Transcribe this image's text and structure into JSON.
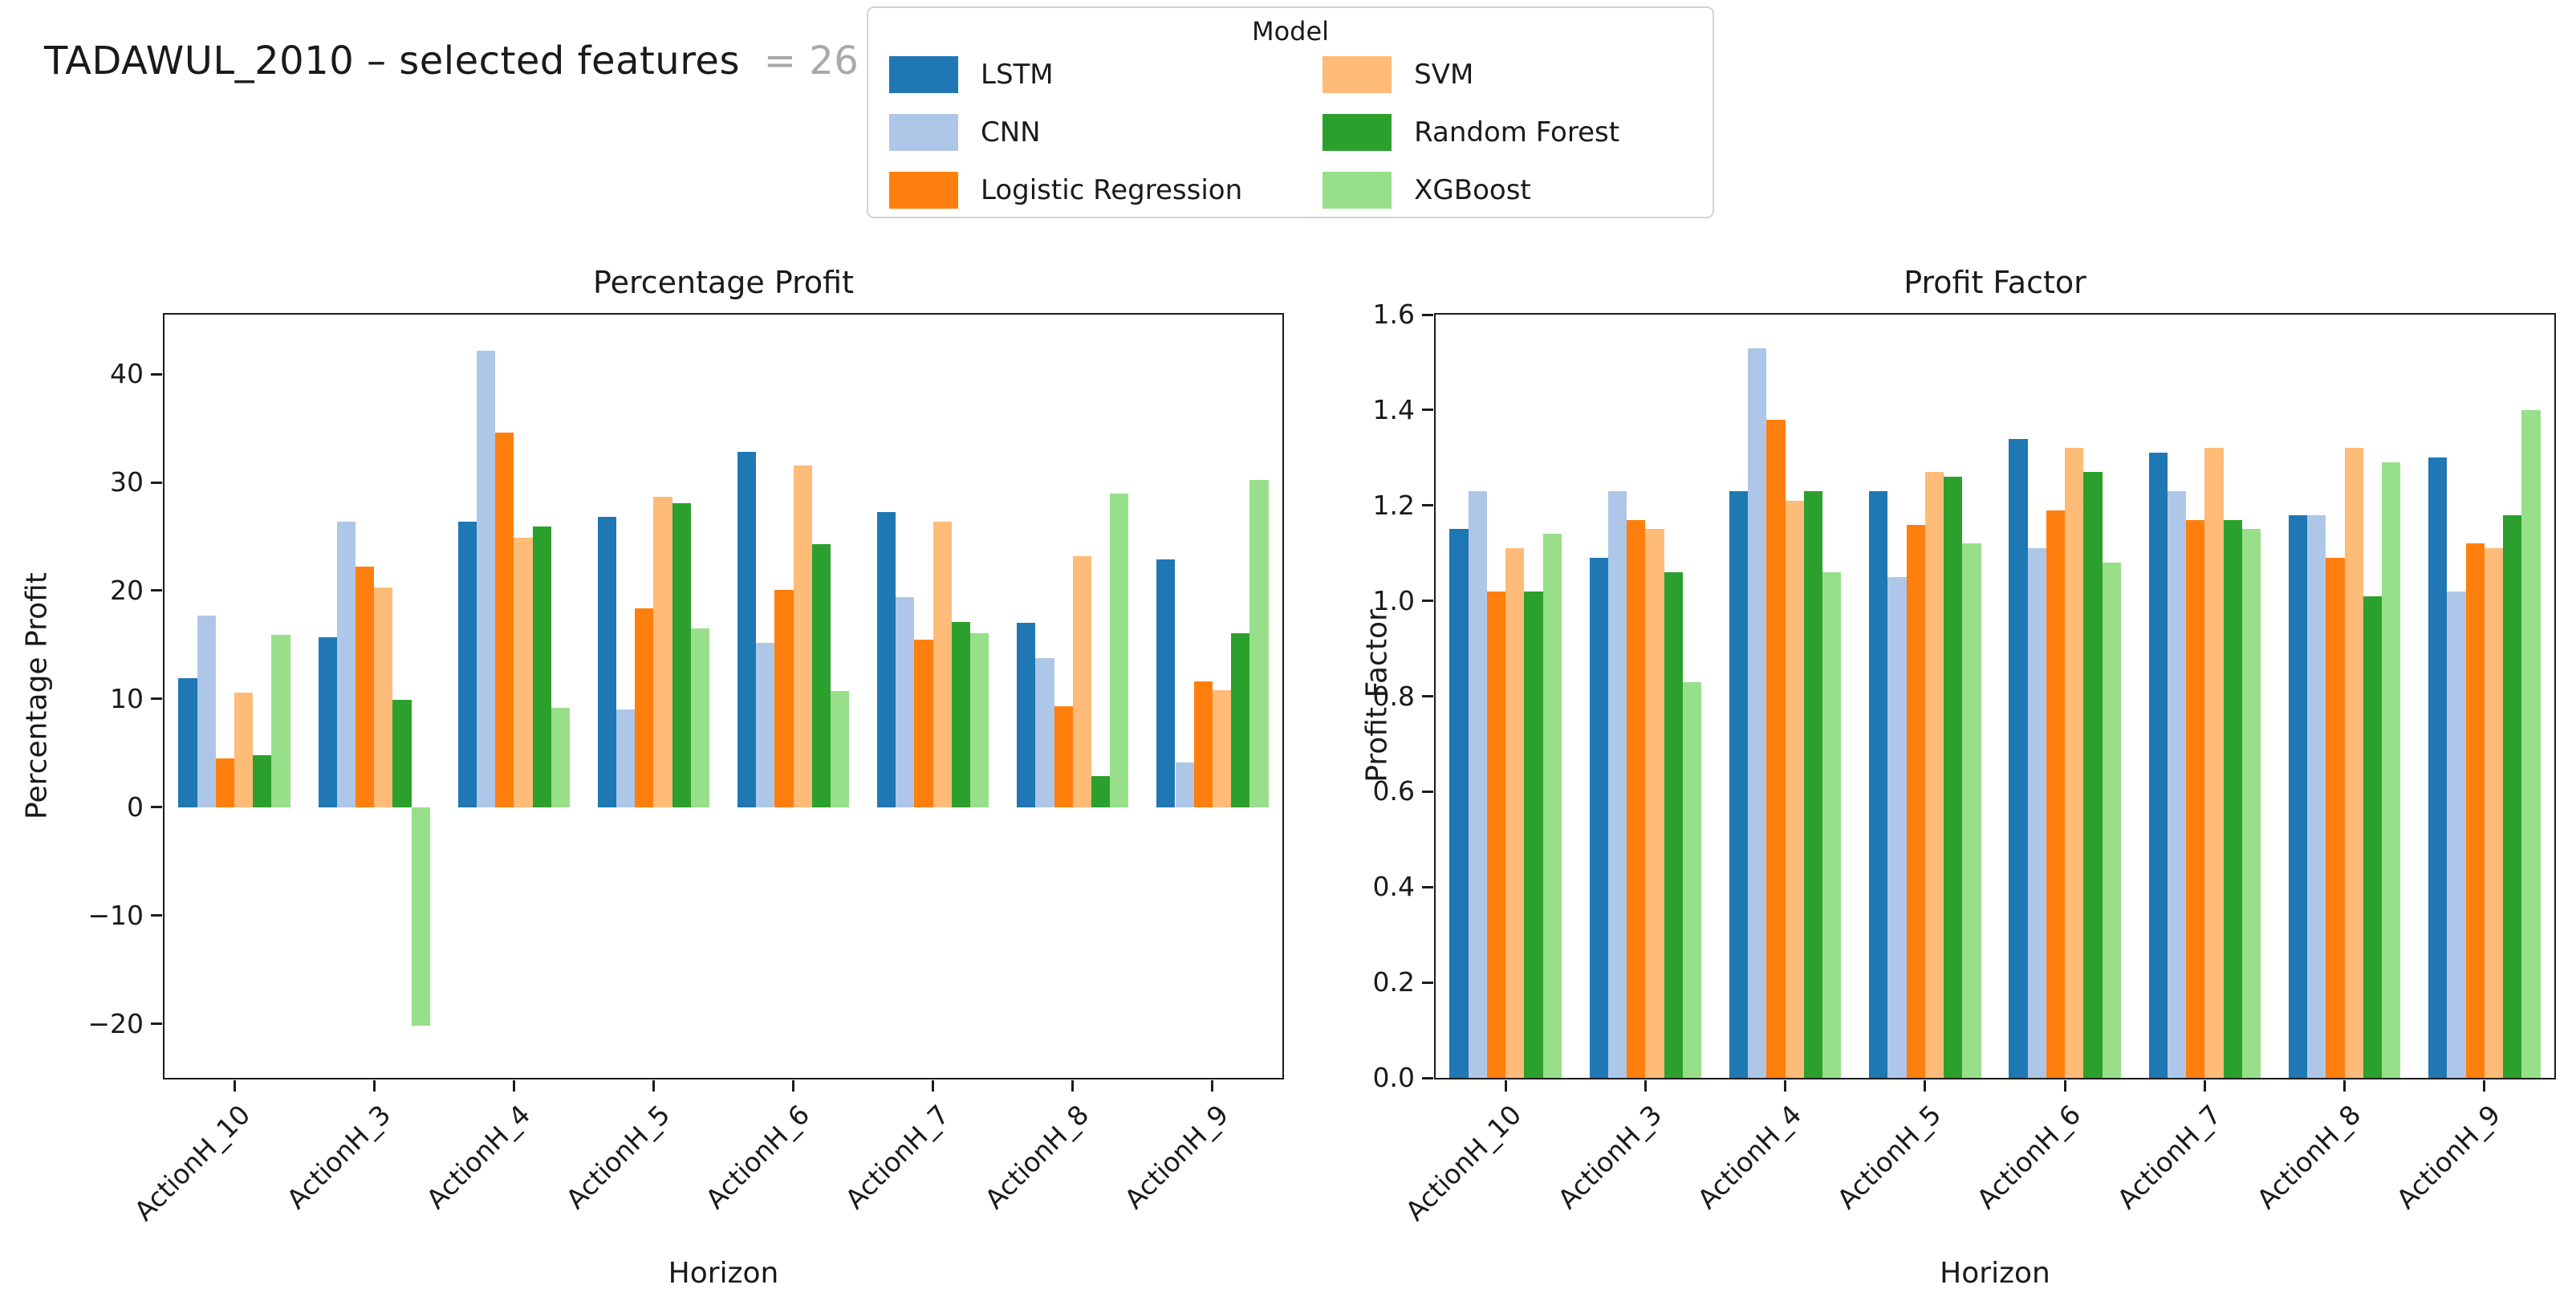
{
  "figure": {
    "background": "#ffffff"
  },
  "title": {
    "main": "TADAWUL_2010 – selected features",
    "suffix": "= 26"
  },
  "legend": {
    "title": "Model",
    "columns": [
      [
        {
          "label": "LSTM",
          "color": "#1f77b4"
        },
        {
          "label": "CNN",
          "color": "#aec7e8"
        },
        {
          "label": "Logistic Regression",
          "color": "#ff7f0e"
        }
      ],
      [
        {
          "label": "SVM",
          "color": "#ffbb78"
        },
        {
          "label": "Random Forest",
          "color": "#2ca02c"
        },
        {
          "label": "XGBoost",
          "color": "#98df8a"
        }
      ]
    ]
  },
  "chart_data": [
    {
      "type": "bar",
      "title": "Percentage Profit",
      "xlabel": "Horizon",
      "ylabel": "Percentage Profit",
      "grid": false,
      "legend_position": "figure-top-center",
      "bar_group_width": 0.8,
      "categories": [
        "ActionH_10",
        "ActionH_3",
        "ActionH_4",
        "ActionH_5",
        "ActionH_6",
        "ActionH_7",
        "ActionH_8",
        "ActionH_9"
      ],
      "series": [
        {
          "name": "LSTM",
          "color": "#1f77b4",
          "values": [
            11.9,
            15.7,
            26.4,
            26.8,
            32.8,
            27.3,
            17.0,
            22.9
          ]
        },
        {
          "name": "CNN",
          "color": "#aec7e8",
          "values": [
            17.7,
            26.4,
            42.2,
            9.0,
            15.2,
            19.4,
            13.8,
            4.1
          ]
        },
        {
          "name": "Logistic Regression",
          "color": "#ff7f0e",
          "values": [
            4.5,
            22.2,
            34.6,
            18.4,
            20.1,
            15.5,
            9.3,
            11.6
          ]
        },
        {
          "name": "SVM",
          "color": "#ffbb78",
          "values": [
            10.6,
            20.3,
            24.9,
            28.7,
            31.6,
            26.4,
            23.2,
            10.8
          ]
        },
        {
          "name": "Random Forest",
          "color": "#2ca02c",
          "values": [
            4.8,
            9.9,
            25.9,
            28.1,
            24.3,
            17.1,
            2.9,
            16.1
          ]
        },
        {
          "name": "XGBoost",
          "color": "#98df8a",
          "values": [
            15.9,
            -20.2,
            9.2,
            16.5,
            10.7,
            16.1,
            29.0,
            30.2
          ]
        }
      ],
      "ylim": [
        -25,
        45.5
      ],
      "yticks": [
        -20,
        -10,
        0,
        10,
        20,
        30,
        40
      ],
      "ytick_labels": [
        "−20",
        "−10",
        "0",
        "10",
        "20",
        "30",
        "40"
      ]
    },
    {
      "type": "bar",
      "title": "Profit Factor",
      "xlabel": "Horizon",
      "ylabel": "Profit Factor",
      "grid": false,
      "legend_position": "figure-top-center",
      "bar_group_width": 0.8,
      "categories": [
        "ActionH_10",
        "ActionH_3",
        "ActionH_4",
        "ActionH_5",
        "ActionH_6",
        "ActionH_7",
        "ActionH_8",
        "ActionH_9"
      ],
      "series": [
        {
          "name": "LSTM",
          "color": "#1f77b4",
          "values": [
            1.15,
            1.09,
            1.23,
            1.23,
            1.34,
            1.31,
            1.18,
            1.3
          ]
        },
        {
          "name": "CNN",
          "color": "#aec7e8",
          "values": [
            1.23,
            1.23,
            1.53,
            1.05,
            1.11,
            1.23,
            1.18,
            1.02
          ]
        },
        {
          "name": "Logistic Regression",
          "color": "#ff7f0e",
          "values": [
            1.02,
            1.17,
            1.38,
            1.16,
            1.19,
            1.17,
            1.09,
            1.12
          ]
        },
        {
          "name": "SVM",
          "color": "#ffbb78",
          "values": [
            1.11,
            1.15,
            1.21,
            1.27,
            1.32,
            1.32,
            1.32,
            1.11
          ]
        },
        {
          "name": "Random Forest",
          "color": "#2ca02c",
          "values": [
            1.02,
            1.06,
            1.23,
            1.26,
            1.27,
            1.17,
            1.01,
            1.18
          ]
        },
        {
          "name": "XGBoost",
          "color": "#98df8a",
          "values": [
            1.14,
            0.83,
            1.06,
            1.12,
            1.08,
            1.15,
            1.29,
            1.4
          ]
        }
      ],
      "ylim": [
        0,
        1.6
      ],
      "yticks": [
        0.0,
        0.2,
        0.4,
        0.6,
        0.8,
        1.0,
        1.2,
        1.4,
        1.6
      ],
      "ytick_labels": [
        "0.0",
        "0.2",
        "0.4",
        "0.6",
        "0.8",
        "1.0",
        "1.2",
        "1.4",
        "1.6"
      ]
    }
  ]
}
